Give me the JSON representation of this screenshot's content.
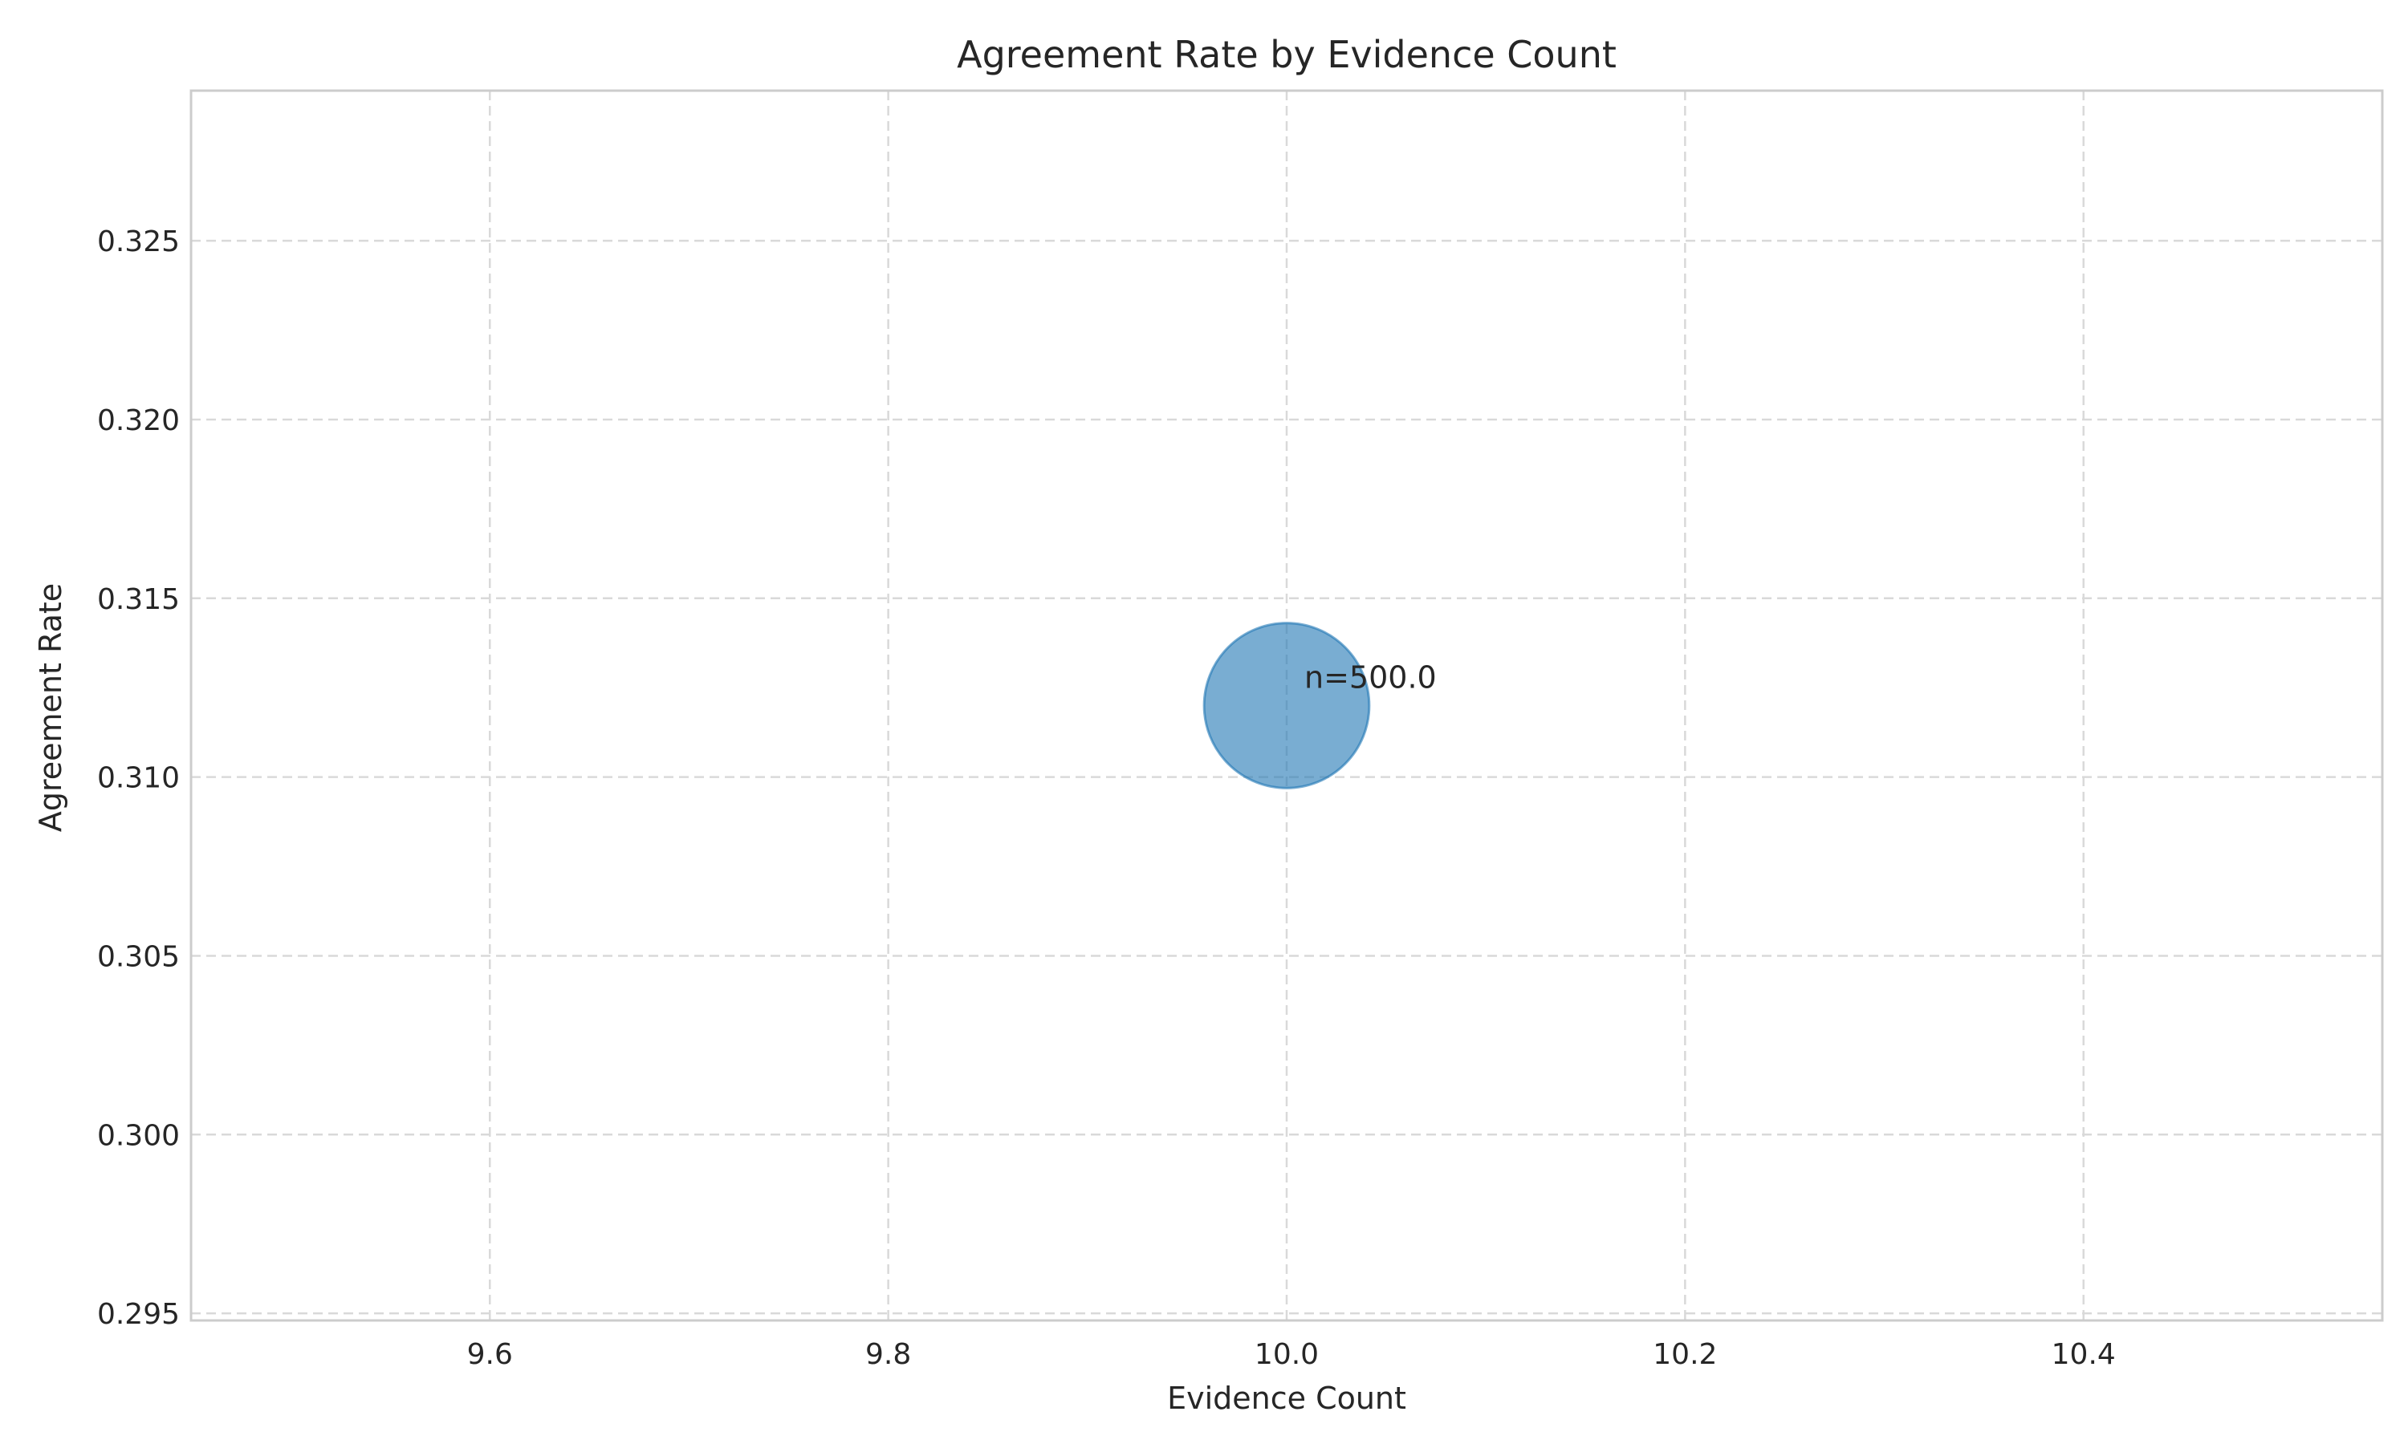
{
  "chart_data": {
    "type": "scatter",
    "title": "Agreement Rate by Evidence Count",
    "xlabel": "Evidence Count",
    "ylabel": "Agreement Rate",
    "xlim": [
      9.45,
      10.55
    ],
    "ylim": [
      0.2948,
      0.3292
    ],
    "xticks": [
      9.6,
      9.8,
      10.0,
      10.2,
      10.4
    ],
    "xtick_labels": [
      "9.6",
      "9.8",
      "10.0",
      "10.2",
      "10.4"
    ],
    "yticks": [
      0.295,
      0.3,
      0.305,
      0.31,
      0.315,
      0.32,
      0.325
    ],
    "ytick_labels": [
      "0.295",
      "0.300",
      "0.305",
      "0.310",
      "0.315",
      "0.320",
      "0.325"
    ],
    "grid": true,
    "points": [
      {
        "x": 10.0,
        "y": 0.312,
        "n": 500.0,
        "label": "n=500.0"
      }
    ],
    "colors": {
      "marker_fill": "#1f77b4",
      "marker_edge": "#1f77b4",
      "axes_edge": "#cccccc",
      "grid": "#d9d9d9"
    }
  }
}
